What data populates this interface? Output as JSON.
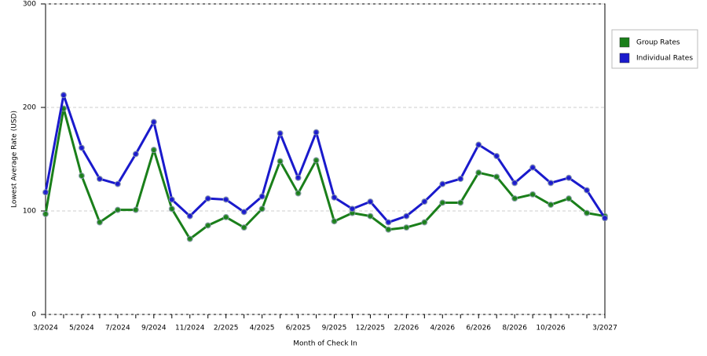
{
  "chart_data": {
    "type": "line",
    "x_label": "Month of Check In",
    "y_label": "Lowest Average Rate (USD)",
    "categories": [
      "3/2024",
      null,
      "5/2024",
      null,
      "7/2024",
      null,
      "9/2024",
      null,
      "11/2024",
      null,
      "2/2025",
      null,
      "4/2025",
      null,
      "6/2025",
      null,
      "9/2025",
      null,
      "12/2025",
      null,
      "2/2026",
      null,
      "4/2026",
      null,
      "6/2026",
      null,
      "8/2026",
      null,
      "10/2026",
      null,
      null,
      "3/2027"
    ],
    "series": [
      {
        "name": "Group Rates",
        "color": "#1a7f1a",
        "values": [
          97,
          199,
          134,
          89,
          101,
          101,
          159,
          102,
          73,
          86,
          94,
          84,
          102,
          148,
          117,
          149,
          90,
          98,
          95,
          82,
          84,
          89,
          108,
          108,
          137,
          133,
          112,
          116,
          106,
          112,
          98,
          95
        ]
      },
      {
        "name": "Individual Rates",
        "color": "#1a1acc",
        "values": [
          118,
          212,
          161,
          131,
          126,
          155,
          186,
          111,
          95,
          112,
          111,
          99,
          114,
          175,
          132,
          176,
          113,
          102,
          109,
          89,
          95,
          109,
          126,
          131,
          164,
          153,
          127,
          142,
          127,
          132,
          120,
          93
        ]
      }
    ],
    "ylim": [
      0,
      300
    ],
    "yticks": [
      0,
      100,
      200,
      300
    ],
    "grid": true,
    "legend": "right"
  }
}
